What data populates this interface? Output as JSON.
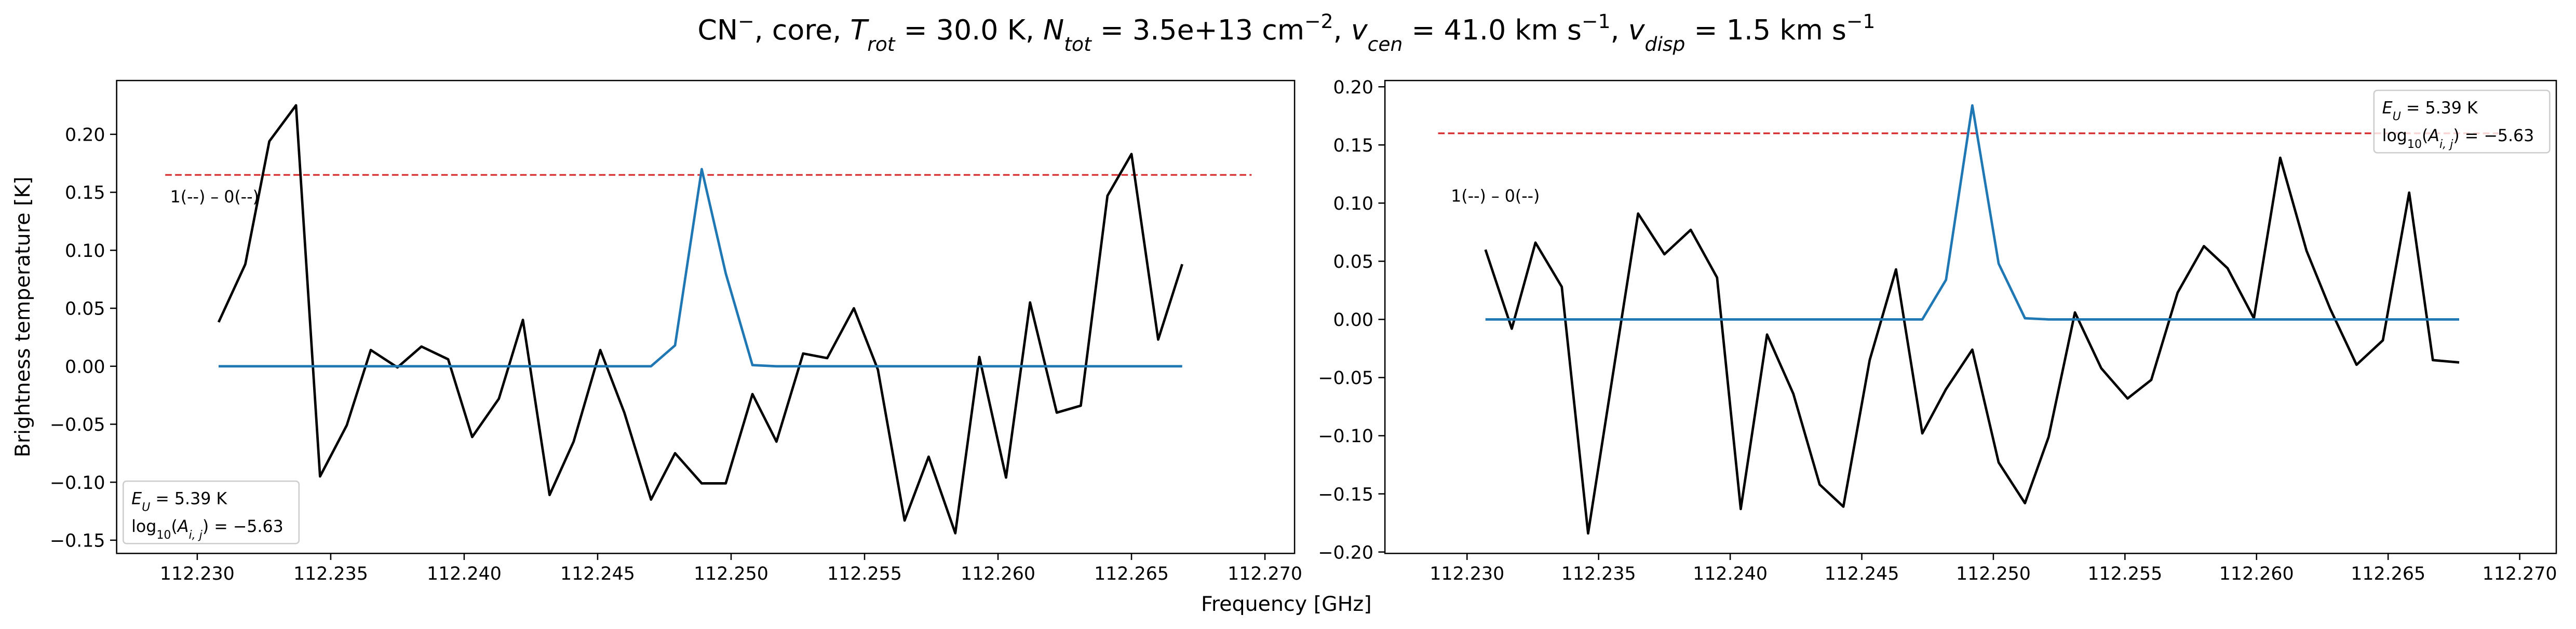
{
  "title": {
    "segments": [
      {
        "text": "CN"
      },
      {
        "text": "−",
        "style": "sup"
      },
      {
        "text": ", core, "
      },
      {
        "text": "T",
        "style": "italic"
      },
      {
        "text": "rot",
        "style": "italic-sub"
      },
      {
        "text": " =  30.0 K, "
      },
      {
        "text": "N",
        "style": "italic"
      },
      {
        "text": "tot",
        "style": "italic-sub"
      },
      {
        "text": " =  3.5e+13 cm"
      },
      {
        "text": "−2",
        "style": "sup"
      },
      {
        "text": ", "
      },
      {
        "text": "v",
        "style": "italic"
      },
      {
        "text": "cen",
        "style": "italic-sub"
      },
      {
        "text": " =  41.0 km s"
      },
      {
        "text": "−1",
        "style": "sup"
      },
      {
        "text": ", "
      },
      {
        "text": "v",
        "style": "italic"
      },
      {
        "text": "disp",
        "style": "italic-sub"
      },
      {
        "text": " =  1.5 km s"
      },
      {
        "text": "−1",
        "style": "sup"
      }
    ]
  },
  "xlabel": "Frequency [GHz]",
  "ylabel": "Brightness temperature [K]",
  "chart_data": [
    {
      "type": "line",
      "x": [
        112.2308,
        112.2318,
        112.2327,
        112.2337,
        112.2346,
        112.2356,
        112.2365,
        112.2375,
        112.2384,
        112.2394,
        112.2403,
        112.2413,
        112.2422,
        112.2432,
        112.2441,
        112.2451,
        112.246,
        112.247,
        112.2479,
        112.2489,
        112.2498,
        112.2508,
        112.2517,
        112.2527,
        112.2536,
        112.2546,
        112.2555,
        112.2565,
        112.2574,
        112.2584,
        112.2593,
        112.2603,
        112.2612,
        112.2622,
        112.2631,
        112.2641,
        112.265,
        112.266,
        112.2669
      ],
      "series": [
        {
          "color": "#000000",
          "values": [
            0.038,
            0.088,
            0.194,
            0.225,
            -0.095,
            -0.051,
            0.014,
            -0.001,
            0.017,
            0.006,
            -0.061,
            -0.028,
            0.04,
            -0.111,
            -0.065,
            0.014,
            -0.04,
            -0.115,
            -0.075,
            -0.101,
            -0.101,
            -0.024,
            -0.065,
            0.011,
            0.007,
            0.05,
            -0.003,
            -0.133,
            -0.078,
            -0.144,
            0.008,
            -0.096,
            0.055,
            -0.04,
            -0.034,
            0.147,
            0.183,
            0.023,
            0.088
          ]
        },
        {
          "color": "#1f77b4",
          "values": [
            0,
            0,
            0,
            0,
            0,
            0,
            0,
            0,
            0,
            0,
            0,
            0,
            0,
            0,
            0,
            0,
            0,
            0,
            0.018,
            0.17,
            0.08,
            0.001,
            0,
            0,
            0,
            0,
            0,
            0,
            0,
            0,
            0,
            0,
            0,
            0,
            0,
            0,
            0,
            0,
            0
          ]
        }
      ],
      "hlines": [
        {
          "value": 0.165,
          "xmin": 112.2288,
          "xmax": 112.2695,
          "color": "#d62728",
          "style": "dashed"
        }
      ],
      "annotations": [
        {
          "text": "1(--) – 0(--)",
          "x": 112.2288,
          "y": 0.147
        }
      ],
      "info_box": {
        "corner": "lower left",
        "lines": [
          [
            {
              "text": "E",
              "style": "italic"
            },
            {
              "text": "U",
              "style": "italic-sub"
            },
            {
              "text": " = 5.39 K"
            }
          ],
          [
            {
              "text": "log"
            },
            {
              "text": "10",
              "style": "sub"
            },
            {
              "text": "("
            },
            {
              "text": "A",
              "style": "italic"
            },
            {
              "text": "i, j",
              "style": "italic-sub"
            },
            {
              "text": ") = −5.63"
            }
          ]
        ]
      },
      "xlim": [
        112.22698,
        112.27111
      ],
      "ylim": [
        -0.1614,
        0.2464
      ],
      "xticks": [
        {
          "value": 112.23,
          "label": "112.230"
        },
        {
          "value": 112.235,
          "label": "112.235"
        },
        {
          "value": 112.24,
          "label": "112.240"
        },
        {
          "value": 112.245,
          "label": "112.245"
        },
        {
          "value": 112.25,
          "label": "112.250"
        },
        {
          "value": 112.255,
          "label": "112.255"
        },
        {
          "value": 112.26,
          "label": "112.260"
        },
        {
          "value": 112.265,
          "label": "112.265"
        },
        {
          "value": 112.27,
          "label": "112.270"
        }
      ],
      "yticks": [
        {
          "value": -0.15,
          "label": "−0.15"
        },
        {
          "value": -0.1,
          "label": "−0.10"
        },
        {
          "value": -0.05,
          "label": "−0.05"
        },
        {
          "value": 0,
          "label": "0.00"
        },
        {
          "value": 0.05,
          "label": "0.05"
        },
        {
          "value": 0.1,
          "label": "0.10"
        },
        {
          "value": 0.15,
          "label": "0.15"
        },
        {
          "value": 0.2,
          "label": "0.20"
        }
      ]
    },
    {
      "type": "line",
      "x": [
        112.2307,
        112.2317,
        112.2326,
        112.2336,
        112.2346,
        112.2356,
        112.2365,
        112.2375,
        112.2385,
        112.2395,
        112.2404,
        112.2414,
        112.2424,
        112.2434,
        112.2443,
        112.2453,
        112.2463,
        112.2473,
        112.2482,
        112.2492,
        112.2502,
        112.2512,
        112.2521,
        112.2531,
        112.2541,
        112.2551,
        112.256,
        112.257,
        112.258,
        112.2589,
        112.2599,
        112.2609,
        112.2619,
        112.2628,
        112.2638,
        112.2648,
        112.2658,
        112.2667,
        112.2677
      ],
      "series": [
        {
          "color": "#000000",
          "values": [
            0.06,
            -0.008,
            0.066,
            0.028,
            -0.184,
            -0.039,
            0.091,
            0.056,
            0.077,
            0.036,
            -0.163,
            -0.013,
            -0.064,
            -0.142,
            -0.161,
            -0.035,
            0.043,
            -0.098,
            -0.06,
            -0.026,
            -0.123,
            -0.158,
            -0.101,
            0.006,
            -0.042,
            -0.068,
            -0.052,
            0.023,
            0.063,
            0.044,
            0.001,
            0.139,
            0.059,
            0.009,
            -0.039,
            -0.018,
            0.109,
            -0.035,
            -0.037
          ]
        },
        {
          "color": "#1f77b4",
          "values": [
            0,
            0,
            0,
            0,
            0,
            0,
            0,
            0,
            0,
            0,
            0,
            0,
            0,
            0,
            0,
            0,
            0,
            0,
            0.034,
            0.184,
            0.048,
            0.001,
            0,
            0,
            0,
            0,
            0,
            0,
            0,
            0,
            0,
            0,
            0,
            0,
            0,
            0,
            0,
            0,
            0
          ]
        }
      ],
      "hlines": [
        {
          "value": 0.16,
          "xmin": 112.2289,
          "xmax": 112.2692,
          "color": "#d62728",
          "style": "dashed"
        }
      ],
      "annotations": [
        {
          "text": "1(--) – 0(--)",
          "x": 112.2292,
          "y": 0.107
        }
      ],
      "info_box": {
        "corner": "upper right",
        "lines": [
          [
            {
              "text": "E",
              "style": "italic"
            },
            {
              "text": "U",
              "style": "italic-sub"
            },
            {
              "text": " = 5.39 K"
            }
          ],
          [
            {
              "text": "log"
            },
            {
              "text": "10",
              "style": "sub"
            },
            {
              "text": "("
            },
            {
              "text": "A",
              "style": "italic"
            },
            {
              "text": "i, j",
              "style": "italic-sub"
            },
            {
              "text": ") = −5.63"
            }
          ]
        ]
      },
      "xlim": [
        112.22688,
        112.27139
      ],
      "ylim": [
        -0.2012,
        0.2054
      ],
      "xticks": [
        {
          "value": 112.23,
          "label": "112.230"
        },
        {
          "value": 112.235,
          "label": "112.235"
        },
        {
          "value": 112.24,
          "label": "112.240"
        },
        {
          "value": 112.245,
          "label": "112.245"
        },
        {
          "value": 112.25,
          "label": "112.250"
        },
        {
          "value": 112.255,
          "label": "112.255"
        },
        {
          "value": 112.26,
          "label": "112.260"
        },
        {
          "value": 112.265,
          "label": "112.265"
        },
        {
          "value": 112.27,
          "label": "112.270"
        }
      ],
      "yticks": [
        {
          "value": -0.2,
          "label": "−0.20"
        },
        {
          "value": -0.15,
          "label": "−0.15"
        },
        {
          "value": -0.1,
          "label": "−0.10"
        },
        {
          "value": -0.05,
          "label": "−0.05"
        },
        {
          "value": 0,
          "label": "0.00"
        },
        {
          "value": 0.05,
          "label": "0.05"
        },
        {
          "value": 0.1,
          "label": "0.10"
        },
        {
          "value": 0.15,
          "label": "0.15"
        },
        {
          "value": 0.2,
          "label": "0.20"
        }
      ]
    }
  ]
}
